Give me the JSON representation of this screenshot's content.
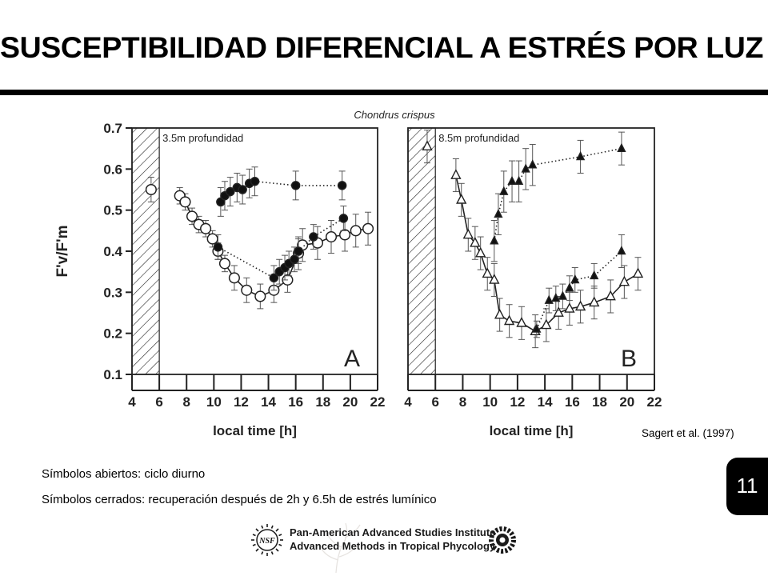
{
  "slide": {
    "title": "SUSCEPTIBILIDAD DIFERENCIAL A ESTRÉS POR LUZ",
    "page_number": "11",
    "citation": "Sagert et al. (1997)",
    "caption_open": "Símbolos abiertos: ciclo diurno",
    "caption_closed": "Símbolos cerrados: recuperación después de 2h y 6.5h de estrés lumínico",
    "footer_line1": "Pan-American Advanced Studies Institute",
    "footer_line2": "Advanced Methods in Tropical Phycology",
    "footer_logo_left_text": "NSF"
  },
  "chart_data": [
    {
      "type": "scatter",
      "title": "Chondrus crispus",
      "panel_label": "A",
      "subtitle": "3.5m profundidad",
      "xlabel": "local time [h]",
      "ylabel": "F'v/F'm",
      "xlim": [
        4,
        22
      ],
      "ylim": [
        0.1,
        0.7
      ],
      "xticks": [
        4,
        6,
        8,
        10,
        12,
        14,
        16,
        18,
        20,
        22
      ],
      "yticks": [
        0.1,
        0.2,
        0.3,
        0.4,
        0.5,
        0.6,
        0.7
      ],
      "dark_period": [
        4,
        6
      ],
      "grid": false,
      "series": [
        {
          "marker": "open-circle",
          "line": "solid",
          "points": [
            {
              "x": 5.4,
              "y": 0.55,
              "err": 0.03,
              "connected": false
            },
            {
              "x": 7.5,
              "y": 0.535,
              "err": 0.02
            },
            {
              "x": 7.9,
              "y": 0.52,
              "err": 0.02
            },
            {
              "x": 8.4,
              "y": 0.485,
              "err": 0.02
            },
            {
              "x": 8.9,
              "y": 0.465,
              "err": 0.02
            },
            {
              "x": 9.4,
              "y": 0.455,
              "err": 0.02
            },
            {
              "x": 9.9,
              "y": 0.43,
              "err": 0.02
            },
            {
              "x": 10.3,
              "y": 0.4,
              "err": 0.02
            },
            {
              "x": 10.8,
              "y": 0.37,
              "err": 0.02
            },
            {
              "x": 11.5,
              "y": 0.335,
              "err": 0.03
            },
            {
              "x": 12.4,
              "y": 0.305,
              "err": 0.03
            },
            {
              "x": 13.4,
              "y": 0.29,
              "err": 0.03
            },
            {
              "x": 14.4,
              "y": 0.305,
              "err": 0.03
            },
            {
              "x": 15.4,
              "y": 0.33,
              "err": 0.03
            },
            {
              "x": 16.2,
              "y": 0.395,
              "err": 0.04
            },
            {
              "x": 16.5,
              "y": 0.415,
              "err": 0.04
            },
            {
              "x": 17.6,
              "y": 0.42,
              "err": 0.04
            },
            {
              "x": 18.6,
              "y": 0.435,
              "err": 0.04
            },
            {
              "x": 19.6,
              "y": 0.44,
              "err": 0.04
            },
            {
              "x": 20.4,
              "y": 0.45,
              "err": 0.04
            },
            {
              "x": 21.3,
              "y": 0.455,
              "err": 0.04
            }
          ]
        },
        {
          "marker": "filled-circle",
          "line": "dotted",
          "points": [
            {
              "x": 10.5,
              "y": 0.52,
              "err": 0.035
            },
            {
              "x": 10.8,
              "y": 0.535,
              "err": 0.035
            },
            {
              "x": 11.2,
              "y": 0.545,
              "err": 0.035
            },
            {
              "x": 11.7,
              "y": 0.555,
              "err": 0.035
            },
            {
              "x": 12.1,
              "y": 0.55,
              "err": 0.035
            },
            {
              "x": 12.6,
              "y": 0.565,
              "err": 0.035
            },
            {
              "x": 13.0,
              "y": 0.57,
              "err": 0.035
            },
            {
              "x": 16.0,
              "y": 0.56,
              "err": 0.035
            },
            {
              "x": 19.4,
              "y": 0.56,
              "err": 0.035
            }
          ]
        },
        {
          "marker": "filled-circle",
          "line": "dotted",
          "points": [
            {
              "x": 10.3,
              "y": 0.41,
              "err": 0.03
            },
            {
              "x": 14.4,
              "y": 0.335,
              "err": 0.03
            },
            {
              "x": 14.8,
              "y": 0.35,
              "err": 0.03
            },
            {
              "x": 15.2,
              "y": 0.36,
              "err": 0.03
            },
            {
              "x": 15.5,
              "y": 0.37,
              "err": 0.03
            },
            {
              "x": 15.9,
              "y": 0.38,
              "err": 0.03
            },
            {
              "x": 16.2,
              "y": 0.4,
              "err": 0.03
            },
            {
              "x": 17.3,
              "y": 0.435,
              "err": 0.03
            },
            {
              "x": 19.5,
              "y": 0.48,
              "err": 0.03
            }
          ]
        }
      ]
    },
    {
      "type": "scatter",
      "panel_label": "B",
      "subtitle": "8.5m profundidad",
      "xlabel": "local time [h]",
      "xlim": [
        4,
        22
      ],
      "ylim": [
        0.1,
        0.7
      ],
      "xticks": [
        4,
        6,
        8,
        10,
        12,
        14,
        16,
        18,
        20,
        22
      ],
      "dark_period": [
        4,
        6
      ],
      "grid": false,
      "series": [
        {
          "marker": "open-triangle",
          "line": "solid",
          "points": [
            {
              "x": 5.4,
              "y": 0.655,
              "err": 0.04,
              "connected": false
            },
            {
              "x": 7.5,
              "y": 0.585,
              "err": 0.04
            },
            {
              "x": 7.9,
              "y": 0.525,
              "err": 0.04
            },
            {
              "x": 8.4,
              "y": 0.44,
              "err": 0.04
            },
            {
              "x": 8.9,
              "y": 0.42,
              "err": 0.04
            },
            {
              "x": 9.3,
              "y": 0.395,
              "err": 0.04
            },
            {
              "x": 9.8,
              "y": 0.345,
              "err": 0.04
            },
            {
              "x": 10.3,
              "y": 0.33,
              "err": 0.04
            },
            {
              "x": 10.7,
              "y": 0.245,
              "err": 0.04
            },
            {
              "x": 11.4,
              "y": 0.23,
              "err": 0.04
            },
            {
              "x": 12.3,
              "y": 0.225,
              "err": 0.04
            },
            {
              "x": 13.3,
              "y": 0.205,
              "err": 0.04
            },
            {
              "x": 14.1,
              "y": 0.22,
              "err": 0.04
            },
            {
              "x": 15.0,
              "y": 0.25,
              "err": 0.04
            },
            {
              "x": 15.8,
              "y": 0.26,
              "err": 0.04
            },
            {
              "x": 16.6,
              "y": 0.265,
              "err": 0.04
            },
            {
              "x": 17.6,
              "y": 0.275,
              "err": 0.04
            },
            {
              "x": 18.8,
              "y": 0.29,
              "err": 0.04
            },
            {
              "x": 19.8,
              "y": 0.325,
              "err": 0.04
            },
            {
              "x": 20.8,
              "y": 0.345,
              "err": 0.04
            }
          ]
        },
        {
          "marker": "filled-triangle",
          "line": "dotted",
          "points": [
            {
              "x": 10.3,
              "y": 0.425,
              "err": 0.05
            },
            {
              "x": 10.6,
              "y": 0.49,
              "err": 0.05
            },
            {
              "x": 11.0,
              "y": 0.545,
              "err": 0.05
            },
            {
              "x": 11.6,
              "y": 0.57,
              "err": 0.05
            },
            {
              "x": 12.1,
              "y": 0.57,
              "err": 0.05
            },
            {
              "x": 12.6,
              "y": 0.6,
              "err": 0.05
            },
            {
              "x": 13.1,
              "y": 0.61,
              "err": 0.05
            },
            {
              "x": 16.6,
              "y": 0.63,
              "err": 0.04
            },
            {
              "x": 19.6,
              "y": 0.65,
              "err": 0.04
            }
          ]
        },
        {
          "marker": "filled-triangle",
          "line": "dotted",
          "points": [
            {
              "x": 13.4,
              "y": 0.21,
              "err": 0.02
            },
            {
              "x": 14.3,
              "y": 0.28,
              "err": 0.03
            },
            {
              "x": 14.8,
              "y": 0.285,
              "err": 0.03
            },
            {
              "x": 15.3,
              "y": 0.29,
              "err": 0.03
            },
            {
              "x": 15.8,
              "y": 0.31,
              "err": 0.03
            },
            {
              "x": 16.2,
              "y": 0.33,
              "err": 0.03
            },
            {
              "x": 17.6,
              "y": 0.34,
              "err": 0.03
            },
            {
              "x": 19.6,
              "y": 0.4,
              "err": 0.04
            }
          ]
        }
      ]
    }
  ]
}
